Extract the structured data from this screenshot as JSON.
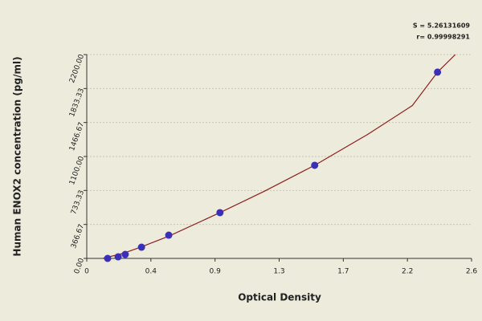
{
  "chart_data": {
    "type": "scatter",
    "x_label": "Optical Density",
    "y_label": "Human ENOX2 concentration (pg/ml)",
    "annotations": [
      "S = 5.26131609",
      "r= 0.99998291"
    ],
    "x": [
      0.141,
      0.212,
      0.26,
      0.37,
      0.554,
      0.9,
      1.54,
      2.37
    ],
    "values": [
      0,
      17,
      43,
      121,
      251,
      494,
      1005,
      2010
    ],
    "color": "#3a30b8",
    "fit": {
      "x": [
        0.11,
        0.141,
        0.212,
        0.26,
        0.37,
        0.554,
        0.9,
        1.2,
        1.54,
        1.9,
        2.2,
        2.37,
        2.49
      ],
      "values": [
        0,
        14,
        40,
        62,
        125,
        240,
        494,
        725,
        1005,
        1340,
        1650,
        2010,
        2200
      ],
      "color": "#8e1f1f"
    },
    "xlim": [
      0,
      2.6
    ],
    "xticks": [
      0,
      {
        "value": 0.4333,
        "label": "0.4"
      },
      {
        "value": 0.8667,
        "label": "0.9"
      },
      1.3,
      {
        "value": 1.7333,
        "label": "1.7"
      },
      {
        "value": 2.1667,
        "label": "2.2"
      },
      2.6
    ],
    "ylim": [
      0,
      2200
    ],
    "yticks": [
      {
        "value": 0,
        "label": "0.00"
      },
      366.67,
      733.33,
      {
        "value": 1100,
        "label": "1100.00"
      },
      1466.67,
      1833.33,
      {
        "value": 2200,
        "label": "2200.00"
      }
    ],
    "grid": true
  }
}
